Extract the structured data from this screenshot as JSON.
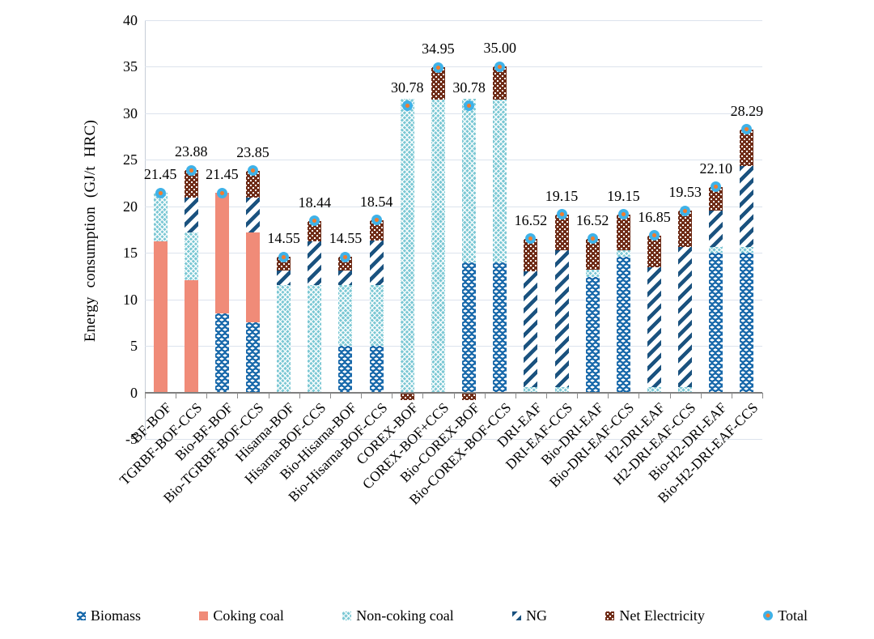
{
  "chart_data": {
    "type": "bar",
    "subtype": "stacked-column-with-total-markers",
    "title": "",
    "xlabel": "",
    "ylabel": "Energy consumption (GJ/t HRC)",
    "ylim": [
      -5,
      40
    ],
    "ytick_interval": 5,
    "yticks": [
      40,
      35,
      30,
      25,
      20,
      15,
      10,
      5,
      0,
      -5
    ],
    "grid": "horizontal",
    "legend_position": "bottom",
    "categories": [
      "BF-BOF",
      "TGRBF-BOF-CCS",
      "Bio-BF-BOF",
      "Bio-TGRBF-BOF-CCS",
      "Hisarna-BOF",
      "Hisarna-BOF-CCS",
      "Bio-Hisarna-BOF",
      "Bio-Hisarna-BOF-CCS",
      "COREX-BOF",
      "COREX-BOF+CCS",
      "Bio-COREX-BOF",
      "Bio-COREX-BOF-CCS",
      "DRI-EAF",
      "DRI-EAF-CCS",
      "Bio-DRI-EAF",
      "Bio-DRI-EAF-CCS",
      "H2-DRI-EAF",
      "H2-DRI-EAF-CCS",
      "Bio-H2-DRI-EAF",
      "Bio-H2-DRI-EAF-CCS"
    ],
    "series": [
      {
        "name": "Biomass",
        "key": "biomass",
        "values": [
          0,
          0,
          8.5,
          7.5,
          0,
          0,
          5.05,
          5.05,
          0,
          0,
          14,
          14,
          0,
          0,
          12.45,
          14.6,
          0,
          0,
          15,
          15
        ]
      },
      {
        "name": "Coking coal",
        "key": "coking",
        "values": [
          16.2,
          12.1,
          12.95,
          9.7,
          0,
          0,
          0,
          0,
          0,
          0,
          0,
          0,
          0,
          0,
          0,
          0,
          0,
          0,
          0,
          0
        ]
      },
      {
        "name": "Non-coking coal",
        "key": "noncoking",
        "values": [
          5.25,
          5.1,
          0,
          0,
          11.5,
          11.5,
          6.45,
          6.45,
          31.58,
          31.5,
          17.58,
          17.5,
          0.6,
          0.6,
          0.7,
          0.7,
          0.6,
          0.6,
          0.6,
          0.6
        ]
      },
      {
        "name": "NG",
        "key": "ng",
        "values": [
          0,
          3.7,
          0,
          3.7,
          1.6,
          4.7,
          1.6,
          4.8,
          0,
          0,
          0,
          0,
          12.42,
          14.7,
          0,
          0,
          12.85,
          15,
          3.95,
          8.7
        ]
      },
      {
        "name": "Net Electricity",
        "key": "elec",
        "values": [
          0,
          2.98,
          0,
          2.95,
          1.45,
          2.24,
          1.45,
          2.24,
          -0.8,
          3.45,
          -0.8,
          3.5,
          3.5,
          3.85,
          3.37,
          3.85,
          3.4,
          3.93,
          2.55,
          3.99
        ]
      }
    ],
    "total_series": {
      "name": "Total",
      "key": "total",
      "values": [
        21.45,
        23.88,
        21.45,
        23.85,
        14.55,
        18.44,
        14.55,
        18.54,
        30.78,
        34.95,
        30.78,
        35.0,
        16.52,
        19.15,
        16.52,
        19.15,
        16.85,
        19.53,
        22.1,
        28.29
      ]
    },
    "total_labels": [
      "21.45",
      "23.88",
      "21.45",
      "23.85",
      "14.55",
      "18.44",
      "14.55",
      "18.54",
      "30.78",
      "34.95",
      "30.78",
      "35.00",
      "16.52",
      "19.15",
      "16.52",
      "19.15",
      "16.85",
      "19.53",
      "22.10",
      "28.29"
    ]
  },
  "legend": {
    "items": [
      {
        "key": "biomass",
        "label": "Biomass"
      },
      {
        "key": "coking",
        "label": "Coking coal"
      },
      {
        "key": "noncoking",
        "label": "Non-coking coal"
      },
      {
        "key": "ng",
        "label": "NG"
      },
      {
        "key": "elec",
        "label": "Net Electricity"
      },
      {
        "key": "total",
        "label": "Total"
      }
    ]
  },
  "colors": {
    "biomass": "#1768aa",
    "coking_coal": "#f08b78",
    "noncoking_base": "#7cc8d4",
    "ng_stripe": "#1a527f",
    "net_electricity": "#6e2b16",
    "total_marker_fill": "#3fb2e8",
    "total_marker_center": "#ee7d31",
    "gridline": "#dce3ed",
    "axis_line": "#7f7f7f"
  }
}
